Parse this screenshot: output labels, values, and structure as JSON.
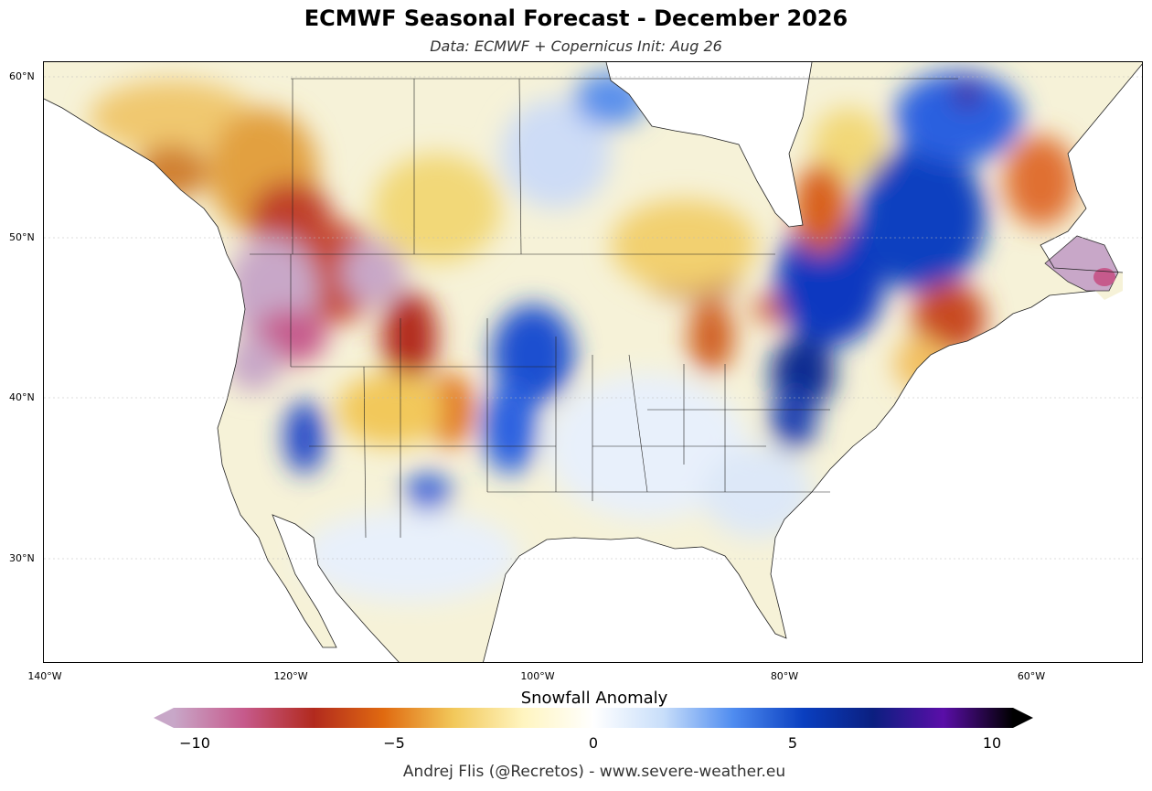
{
  "header": {
    "title": "ECMWF Seasonal Forecast - December 2026",
    "subtitle": "Data: ECMWF + Copernicus   Init: Aug 26"
  },
  "map": {
    "lat_labels": [
      "60°N",
      "50°N",
      "40°N",
      "30°N"
    ],
    "lon_labels": [
      "140°W",
      "120°W",
      "100°W",
      "80°W",
      "60°W"
    ]
  },
  "colorbar": {
    "label": "Snowfall Anomaly",
    "ticks": [
      "−10",
      "−5",
      "0",
      "5",
      "10"
    ],
    "range": [
      -10,
      10
    ],
    "colors": [
      "#c8a7c8",
      "#c65a8c",
      "#b22a1e",
      "#e06a10",
      "#f2c85a",
      "#fff5c0",
      "#ffffff",
      "#c8defa",
      "#4f8cf0",
      "#0a3fc0",
      "#0b1f80",
      "#5a0ea8",
      "#000000"
    ]
  },
  "credit": "Andrej Flis (@Recretos) - www.severe-weather.eu"
}
